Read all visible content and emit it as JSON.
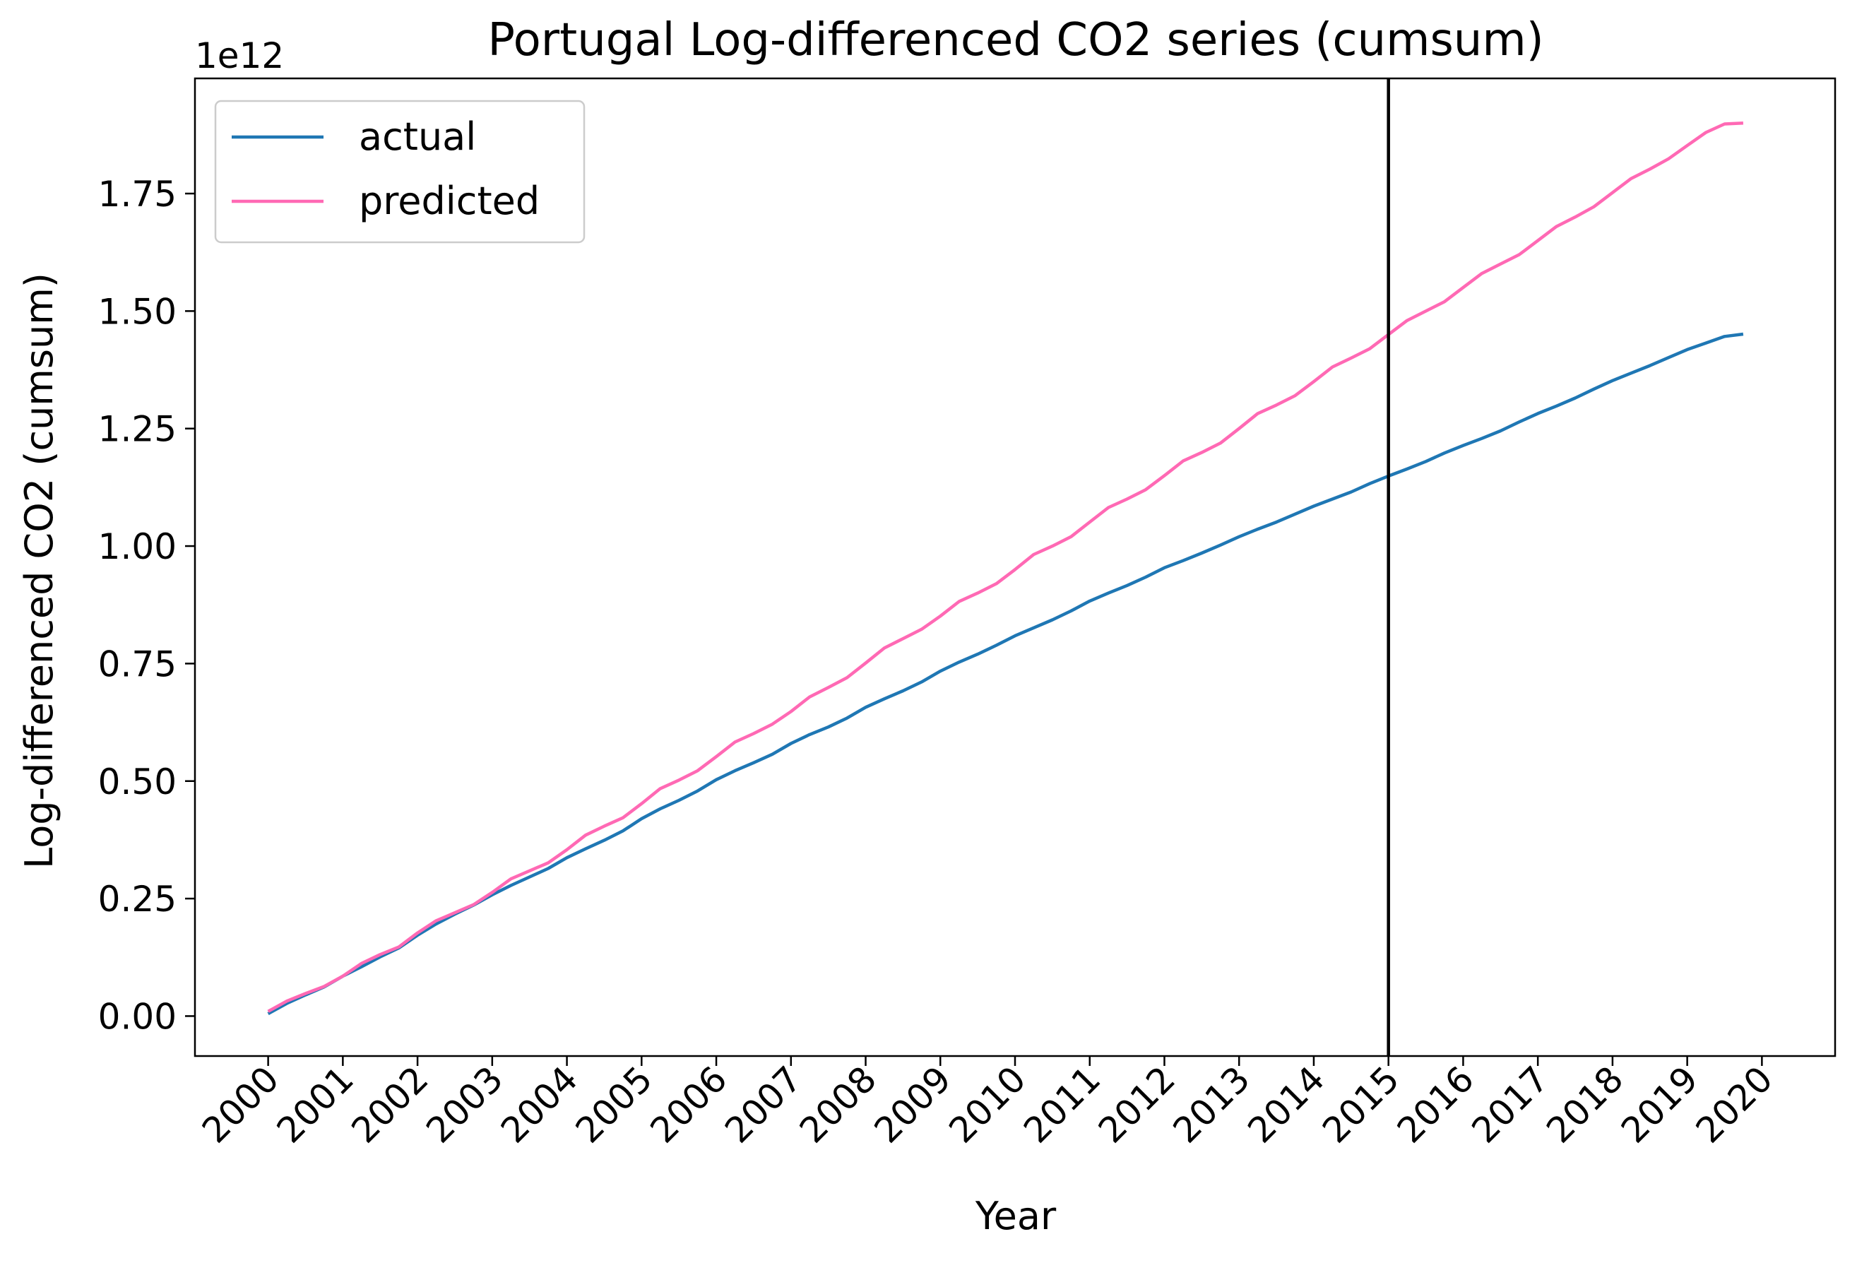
{
  "chart_data": {
    "type": "line",
    "title": "Portugal Log-differenced CO2 series (cumsum)",
    "xlabel": "Year",
    "ylabel": "Log-differenced CO2 (cumsum)",
    "y_offset_label": "1e12",
    "y_scale_factor": 1000000000000.0,
    "x_ticks": [
      "2000",
      "2001",
      "2002",
      "2003",
      "2004",
      "2005",
      "2006",
      "2007",
      "2008",
      "2009",
      "2010",
      "2011",
      "2012",
      "2013",
      "2014",
      "2015",
      "2016",
      "2017",
      "2018",
      "2019",
      "2020"
    ],
    "y_ticks": [
      "0.00",
      "0.25",
      "0.50",
      "0.75",
      "1.00",
      "1.25",
      "1.50",
      "1.75"
    ],
    "xlim": [
      1999.02,
      2020.98
    ],
    "ylim": [
      -0.085,
      1.995
    ],
    "vline_x": 2015.0,
    "vline_color": "#000000",
    "legend": {
      "placement": "upper-left"
    },
    "grid": false,
    "x": [
      2000.0,
      2000.25,
      2000.5,
      2000.75,
      2001.0,
      2001.25,
      2001.5,
      2001.75,
      2002.0,
      2002.25,
      2002.5,
      2002.75,
      2003.0,
      2003.25,
      2003.5,
      2003.75,
      2004.0,
      2004.25,
      2004.5,
      2004.75,
      2005.0,
      2005.25,
      2005.5,
      2005.75,
      2006.0,
      2006.25,
      2006.5,
      2006.75,
      2007.0,
      2007.25,
      2007.5,
      2007.75,
      2008.0,
      2008.25,
      2008.5,
      2008.75,
      2009.0,
      2009.25,
      2009.5,
      2009.75,
      2010.0,
      2010.25,
      2010.5,
      2010.75,
      2011.0,
      2011.25,
      2011.5,
      2011.75,
      2012.0,
      2012.25,
      2012.5,
      2012.75,
      2013.0,
      2013.25,
      2013.5,
      2013.75,
      2014.0,
      2014.25,
      2014.5,
      2014.75,
      2015.0,
      2015.25,
      2015.5,
      2015.75,
      2016.0,
      2016.25,
      2016.5,
      2016.75,
      2017.0,
      2017.25,
      2017.5,
      2017.75,
      2018.0,
      2018.25,
      2018.5,
      2018.75,
      2019.0,
      2019.25,
      2019.5,
      2019.75
    ],
    "series": [
      {
        "name": "actual",
        "color": "#1f77b4",
        "values": [
          0.005,
          0.027,
          0.045,
          0.062,
          0.085,
          0.105,
          0.126,
          0.145,
          0.172,
          0.196,
          0.217,
          0.236,
          0.258,
          0.278,
          0.296,
          0.314,
          0.337,
          0.356,
          0.374,
          0.394,
          0.42,
          0.441,
          0.459,
          0.479,
          0.503,
          0.522,
          0.539,
          0.557,
          0.58,
          0.599,
          0.615,
          0.634,
          0.657,
          0.675,
          0.692,
          0.711,
          0.734,
          0.753,
          0.77,
          0.789,
          0.809,
          0.826,
          0.843,
          0.862,
          0.883,
          0.9,
          0.916,
          0.934,
          0.954,
          0.969,
          0.985,
          1.002,
          1.02,
          1.036,
          1.051,
          1.068,
          1.085,
          1.1,
          1.115,
          1.133,
          1.149,
          1.164,
          1.18,
          1.198,
          1.214,
          1.229,
          1.245,
          1.264,
          1.282,
          1.298,
          1.315,
          1.334,
          1.352,
          1.368,
          1.384,
          1.401,
          1.418,
          1.432,
          1.446,
          1.451
        ]
      },
      {
        "name": "predicted",
        "color": "#ff69b4",
        "values": [
          0.01,
          0.032,
          0.048,
          0.063,
          0.085,
          0.112,
          0.131,
          0.147,
          0.177,
          0.203,
          0.22,
          0.237,
          0.263,
          0.292,
          0.309,
          0.326,
          0.354,
          0.385,
          0.404,
          0.422,
          0.452,
          0.484,
          0.502,
          0.522,
          0.552,
          0.583,
          0.601,
          0.621,
          0.648,
          0.679,
          0.699,
          0.72,
          0.751,
          0.783,
          0.803,
          0.823,
          0.851,
          0.882,
          0.9,
          0.92,
          0.95,
          0.982,
          1.0,
          1.02,
          1.051,
          1.082,
          1.1,
          1.12,
          1.15,
          1.181,
          1.199,
          1.219,
          1.25,
          1.282,
          1.3,
          1.32,
          1.35,
          1.381,
          1.4,
          1.42,
          1.45,
          1.48,
          1.5,
          1.52,
          1.55,
          1.58,
          1.6,
          1.62,
          1.65,
          1.68,
          1.7,
          1.722,
          1.752,
          1.782,
          1.802,
          1.824,
          1.852,
          1.88,
          1.898,
          1.9
        ]
      }
    ]
  }
}
